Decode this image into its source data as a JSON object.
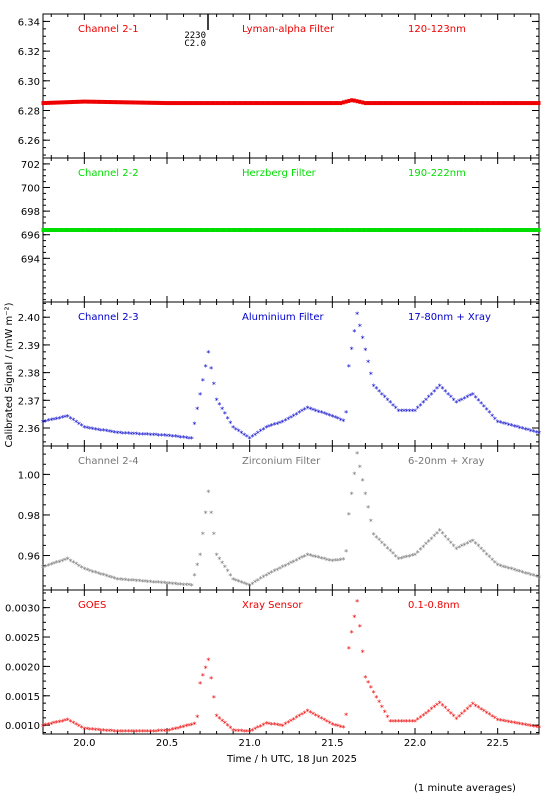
{
  "chart_data": {
    "type": "scatter",
    "xlabel": "Time / h UTC, 18 Jun 2025",
    "ylabel": "Calibrated Signal / (mW m⁻²)",
    "footnote": "(1 minute averages)",
    "xlim": [
      19.75,
      22.75
    ],
    "xticks": [
      "20.0",
      "20.5",
      "21.0",
      "21.5",
      "22.0",
      "22.5"
    ],
    "marker_label": [
      "2230",
      "C2.0"
    ],
    "panels": [
      {
        "channel": "Channel 2-1",
        "filter": "Lyman-alpha Filter",
        "band": "120-123nm",
        "color": "#ee0000",
        "ylim": [
          6.248,
          6.345
        ],
        "yticks": [
          "6.26",
          "6.28",
          "6.30",
          "6.32",
          "6.34"
        ],
        "x": [
          19.75,
          20.0,
          20.5,
          21.0,
          21.55,
          21.62,
          21.7,
          22.0,
          22.5,
          22.75
        ],
        "y": [
          6.285,
          6.286,
          6.285,
          6.285,
          6.285,
          6.287,
          6.285,
          6.285,
          6.285,
          6.285
        ]
      },
      {
        "channel": "Channel 2-2",
        "filter": "Herzberg Filter",
        "band": "190-222nm",
        "color": "#00dd00",
        "ylim": [
          690.3,
          702.5
        ],
        "yticks": [
          "694",
          "696",
          "698",
          "700",
          "702"
        ],
        "x": [
          19.75,
          20.5,
          21.0,
          21.5,
          22.0,
          22.5,
          22.75
        ],
        "y": [
          696.4,
          696.4,
          696.4,
          696.4,
          696.4,
          696.4,
          696.4
        ]
      },
      {
        "channel": "Channel 2-3",
        "filter": "Aluminium Filter",
        "band": "17-80nm + Xray",
        "color": "#0000cc",
        "ylim": [
          2.3535,
          2.4055
        ],
        "yticks": [
          "2.36",
          "2.37",
          "2.38",
          "2.39",
          "2.40"
        ],
        "x": [
          19.75,
          19.9,
          20.0,
          20.2,
          20.5,
          20.65,
          20.7,
          20.75,
          20.8,
          20.9,
          21.0,
          21.1,
          21.2,
          21.35,
          21.5,
          21.58,
          21.6,
          21.65,
          21.75,
          21.9,
          22.0,
          22.15,
          22.25,
          22.35,
          22.5,
          22.75
        ],
        "y": [
          2.362,
          2.364,
          2.36,
          2.358,
          2.357,
          2.356,
          2.372,
          2.387,
          2.37,
          2.36,
          2.356,
          2.36,
          2.362,
          2.367,
          2.364,
          2.362,
          2.382,
          2.401,
          2.375,
          2.366,
          2.366,
          2.375,
          2.369,
          2.372,
          2.362,
          2.358
        ]
      },
      {
        "channel": "Channel 2-4",
        "filter": "Zirconium Filter",
        "band": "6-20nm + Xray",
        "color": "#777777",
        "ylim": [
          0.943,
          1.014
        ],
        "yticks": [
          "0.96",
          "0.98",
          "1.00"
        ],
        "x": [
          19.75,
          19.9,
          20.0,
          20.2,
          20.5,
          20.65,
          20.7,
          20.75,
          20.8,
          20.9,
          21.0,
          21.1,
          21.2,
          21.35,
          21.5,
          21.58,
          21.6,
          21.65,
          21.75,
          21.9,
          22.0,
          22.15,
          22.25,
          22.35,
          22.5,
          22.75
        ],
        "y": [
          0.954,
          0.958,
          0.953,
          0.948,
          0.946,
          0.945,
          0.96,
          0.991,
          0.96,
          0.948,
          0.945,
          0.95,
          0.954,
          0.96,
          0.957,
          0.958,
          0.98,
          1.01,
          0.97,
          0.958,
          0.96,
          0.972,
          0.963,
          0.967,
          0.955,
          0.949
        ]
      },
      {
        "channel": "GOES",
        "filter": "Xray Sensor",
        "band": "0.1-0.8nm",
        "color": "#ee0000",
        "ylim": [
          0.00085,
          0.0033
        ],
        "yticks": [
          "0.0010",
          "0.0015",
          "0.0020",
          "0.0025",
          "0.0030"
        ],
        "x": [
          19.75,
          19.9,
          20.0,
          20.2,
          20.5,
          20.68,
          20.7,
          20.75,
          20.8,
          20.9,
          21.0,
          21.1,
          21.2,
          21.35,
          21.5,
          21.58,
          21.6,
          21.65,
          21.7,
          21.85,
          22.0,
          22.15,
          22.25,
          22.35,
          22.5,
          22.75
        ],
        "y": [
          0.00098,
          0.00108,
          0.00093,
          0.00088,
          0.00089,
          0.00102,
          0.0017,
          0.0021,
          0.00115,
          0.0009,
          0.00088,
          0.00102,
          0.00098,
          0.00123,
          0.001,
          0.00094,
          0.0023,
          0.0031,
          0.0018,
          0.00105,
          0.00105,
          0.00137,
          0.0011,
          0.00135,
          0.00108,
          0.00095
        ]
      }
    ]
  }
}
